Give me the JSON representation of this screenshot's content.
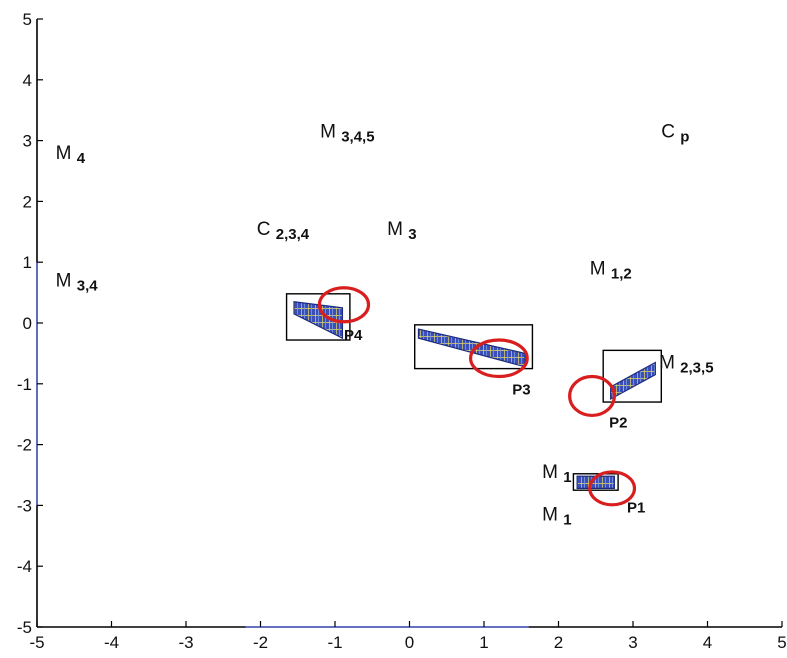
{
  "chart_data": {
    "type": "scatter",
    "title": "",
    "xlabel": "",
    "ylabel": "",
    "xlim": [
      -5,
      5
    ],
    "ylim": [
      -5,
      5
    ],
    "x_ticks": [
      "-5",
      "-4",
      "-3",
      "-2",
      "-1",
      "0",
      "1",
      "2",
      "3",
      "4",
      "5"
    ],
    "y_ticks": [
      "5",
      "4",
      "3",
      "2",
      "1",
      "0",
      "-1",
      "-2",
      "-3",
      "-4",
      "-5"
    ],
    "grid": false,
    "annotations": [
      {
        "main": "M",
        "sub": "4",
        "x": -4.75,
        "y": 2.7
      },
      {
        "main": "M",
        "sub": "3,4",
        "x": -4.75,
        "y": 0.6
      },
      {
        "main": "M",
        "sub": "3,4,5",
        "x": -1.2,
        "y": 3.05
      },
      {
        "main": "C",
        "sub": "2,3,4",
        "x": -2.05,
        "y": 1.45
      },
      {
        "main": "M",
        "sub": "3",
        "x": -0.3,
        "y": 1.45
      },
      {
        "main": "C",
        "sub": "p",
        "x": 3.38,
        "y": 3.05
      },
      {
        "main": "M",
        "sub": "1,2",
        "x": 2.42,
        "y": 0.8
      },
      {
        "main": "M",
        "sub": "2,3,5",
        "x": 3.35,
        "y": -0.75
      },
      {
        "main": "M",
        "sub": "1",
        "x": 1.78,
        "y": -2.55
      },
      {
        "main": "M",
        "sub": "1",
        "x": 1.78,
        "y": -3.25
      }
    ],
    "regions": [
      {
        "label": "P4",
        "box": [
          -1.65,
          -0.28,
          -0.8,
          0.48
        ],
        "label_pos": [
          -0.88,
          -0.28
        ],
        "circle": {
          "cx": -0.88,
          "cy": 0.3,
          "rx": 0.33,
          "ry": 0.28
        },
        "band": {
          "x0": -1.55,
          "x1": -0.9,
          "y_top0": 0.35,
          "y_top1": 0.25,
          "y_bot0": 0.15,
          "y_bot1": -0.25
        }
      },
      {
        "label": "P3",
        "box": [
          0.07,
          -0.75,
          1.65,
          -0.03
        ],
        "label_pos": [
          1.38,
          -1.18
        ],
        "circle": {
          "cx": 1.2,
          "cy": -0.58,
          "rx": 0.38,
          "ry": 0.3
        },
        "band": {
          "x0": 0.12,
          "x1": 1.55,
          "y_top0": -0.1,
          "y_top1": -0.5,
          "y_bot0": -0.25,
          "y_bot1": -0.72
        }
      },
      {
        "label": "P2",
        "box": [
          2.6,
          -1.3,
          3.38,
          -0.45
        ],
        "label_pos": [
          2.68,
          -1.72
        ],
        "circle": {
          "cx": 2.45,
          "cy": -1.2,
          "rx": 0.3,
          "ry": 0.32
        },
        "band": {
          "x0": 2.7,
          "x1": 3.3,
          "y_top0": -1.05,
          "y_top1": -0.65,
          "y_bot0": -1.25,
          "y_bot1": -0.85
        }
      },
      {
        "label": "P1",
        "box": [
          2.2,
          -2.75,
          2.8,
          -2.48
        ],
        "label_pos": [
          2.92,
          -3.12
        ],
        "circle": {
          "cx": 2.72,
          "cy": -2.72,
          "rx": 0.3,
          "ry": 0.27
        },
        "band": {
          "x0": 2.25,
          "x1": 2.75,
          "y_top0": -2.52,
          "y_top1": -2.52,
          "y_bot0": -2.72,
          "y_bot1": -2.72
        }
      }
    ]
  }
}
